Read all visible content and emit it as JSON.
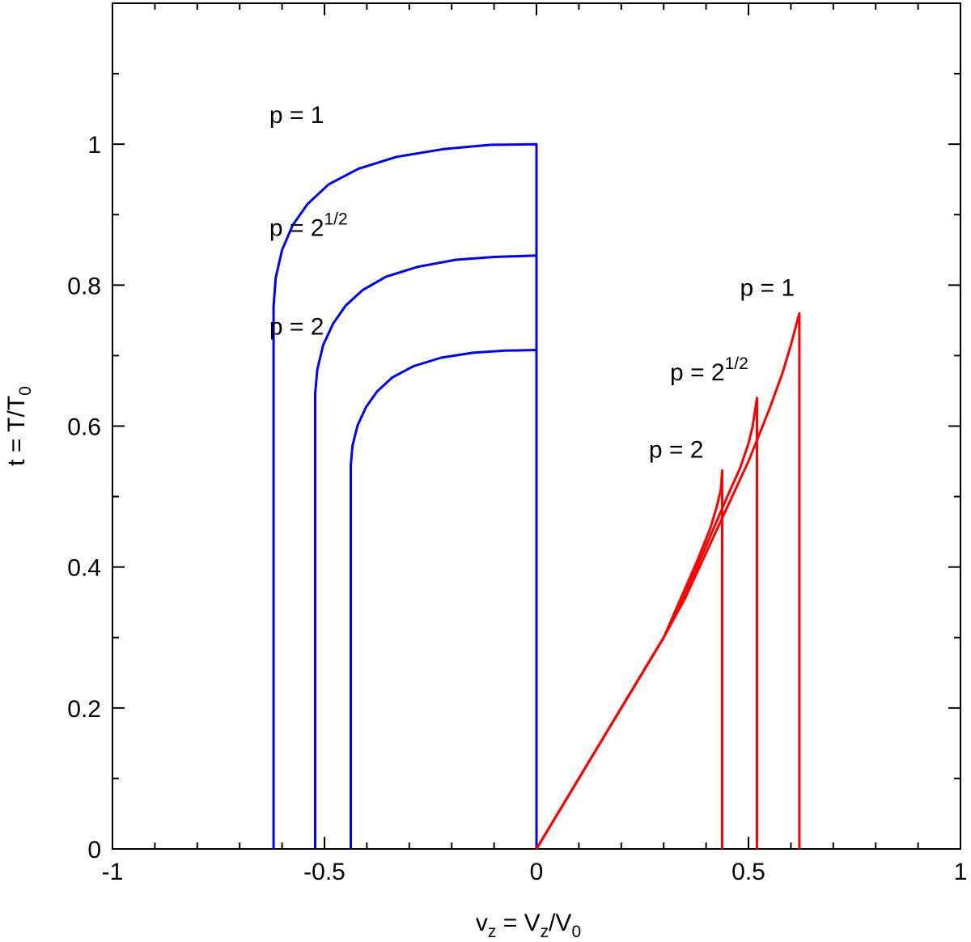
{
  "chart_data": {
    "type": "line",
    "title": "",
    "xlabel": {
      "main": "v",
      "main_sub": "z",
      "eq": " = V",
      "eq_sub": "z",
      "slash": "/V",
      "slash_sub": "0"
    },
    "ylabel": {
      "main": "t = T/T",
      "main_sub": "0"
    },
    "xlim": [
      -1,
      1
    ],
    "ylim": [
      0,
      1.2
    ],
    "x_ticks": [
      -1,
      -0.5,
      0,
      0.5,
      1
    ],
    "x_tick_labels": [
      "-1",
      "-0.5",
      "0",
      "0.5",
      "1"
    ],
    "x_minor_step": 0.1,
    "y_ticks": [
      0,
      0.2,
      0.4,
      0.6,
      0.8,
      1
    ],
    "y_tick_labels": [
      "0",
      "0.2",
      "0.4",
      "0.6",
      "0.8",
      "1"
    ],
    "y_minor_step": 0.1,
    "grid": false,
    "colors": {
      "blue": "#0000ff",
      "red": "#ff0000",
      "axis": "#000000"
    },
    "series": [
      {
        "color": "blue",
        "x": [
          -0.62,
          -0.62,
          -0.615,
          -0.6,
          -0.575,
          -0.54,
          -0.49,
          -0.42,
          -0.33,
          -0.22,
          -0.11,
          0,
          0
        ],
        "y": [
          0,
          0.77,
          0.81,
          0.85,
          0.885,
          0.915,
          0.943,
          0.965,
          0.982,
          0.993,
          0.999,
          1.0,
          0
        ]
      },
      {
        "color": "blue",
        "x": [
          -0.522,
          -0.522,
          -0.517,
          -0.503,
          -0.48,
          -0.45,
          -0.41,
          -0.355,
          -0.28,
          -0.19,
          -0.1,
          0,
          0
        ],
        "y": [
          0,
          0.646,
          0.68,
          0.715,
          0.745,
          0.771,
          0.793,
          0.812,
          0.826,
          0.836,
          0.84,
          0.842,
          0
        ]
      },
      {
        "color": "blue",
        "x": [
          -0.438,
          -0.438,
          -0.434,
          -0.422,
          -0.402,
          -0.376,
          -0.34,
          -0.29,
          -0.225,
          -0.15,
          -0.075,
          0,
          0
        ],
        "y": [
          0,
          0.544,
          0.572,
          0.601,
          0.627,
          0.649,
          0.669,
          0.685,
          0.697,
          0.704,
          0.707,
          0.708,
          0
        ]
      },
      {
        "color": "red",
        "x": [
          0,
          0.1,
          0.2,
          0.3,
          0.35,
          0.4,
          0.45,
          0.5,
          0.55,
          0.58,
          0.6,
          0.62,
          0.62
        ],
        "y": [
          0,
          0.1,
          0.2,
          0.3,
          0.355,
          0.42,
          0.485,
          0.55,
          0.625,
          0.675,
          0.715,
          0.76,
          0
        ]
      },
      {
        "color": "red",
        "x": [
          0,
          0.1,
          0.2,
          0.3,
          0.35,
          0.4,
          0.45,
          0.48,
          0.5,
          0.51,
          0.52,
          0.52
        ],
        "y": [
          0,
          0.1,
          0.2,
          0.3,
          0.36,
          0.43,
          0.5,
          0.54,
          0.575,
          0.6,
          0.64,
          0
        ]
      },
      {
        "color": "red",
        "x": [
          0,
          0.1,
          0.2,
          0.3,
          0.34,
          0.38,
          0.41,
          0.425,
          0.435,
          0.438,
          0.438
        ],
        "y": [
          0,
          0.1,
          0.2,
          0.3,
          0.355,
          0.41,
          0.455,
          0.485,
          0.51,
          0.537,
          0
        ]
      }
    ],
    "annotations": [
      {
        "text": "p = 1",
        "sup": "",
        "x": -0.63,
        "y": 1.03
      },
      {
        "text": "p = 2",
        "sup": "1/2",
        "x": -0.63,
        "y": 0.87
      },
      {
        "text": "p = 2",
        "sup": "",
        "x": -0.63,
        "y": 0.73
      },
      {
        "text": "p = 1",
        "sup": "",
        "x": 0.48,
        "y": 0.785
      },
      {
        "text": "p = 2",
        "sup": "1/2",
        "x": 0.315,
        "y": 0.665
      },
      {
        "text": "p = 2",
        "sup": "",
        "x": 0.265,
        "y": 0.555
      }
    ]
  }
}
